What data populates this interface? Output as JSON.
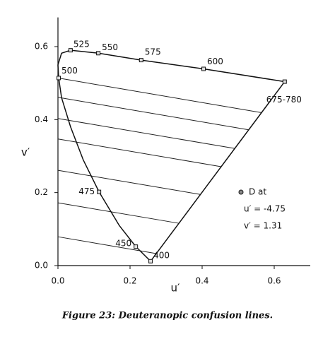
{
  "chart_data": {
    "type": "chromaticity",
    "xlabel": "u′",
    "ylabel": "v′",
    "caption": "Figure 23:  Deuteranopic confusion lines.",
    "xlim": [
      0,
      0.7
    ],
    "ylim": [
      0,
      0.68
    ],
    "xticks": [
      {
        "value": 0,
        "label": "0.0"
      },
      0.2,
      0.4,
      0.6
    ],
    "yticks": [
      {
        "value": 0,
        "label": "0.0"
      },
      0.2,
      0.4,
      0.6
    ],
    "locus": {
      "x": [
        0.257,
        0.216,
        0.17,
        0.114,
        0.07,
        0.035,
        0.01,
        0.002,
        0.0,
        0.01,
        0.035,
        0.112,
        0.231,
        0.404,
        0.629
      ],
      "y": [
        0.012,
        0.052,
        0.11,
        0.202,
        0.29,
        0.38,
        0.46,
        0.514,
        0.55,
        0.582,
        0.59,
        0.582,
        0.563,
        0.539,
        0.504
      ],
      "labels": [
        "400",
        "450",
        null,
        "475",
        null,
        null,
        null,
        "500",
        null,
        null,
        "525",
        "550",
        "575",
        "600",
        "675-780"
      ]
    },
    "confusion_lines": [
      {
        "x": [
          0,
          0.565
        ],
        "y": [
          0.514,
          0.419
        ]
      },
      {
        "x": [
          0,
          0.529
        ],
        "y": [
          0.461,
          0.372
        ]
      },
      {
        "x": [
          0,
          0.49
        ],
        "y": [
          0.403,
          0.321
        ]
      },
      {
        "x": [
          0,
          0.453
        ],
        "y": [
          0.347,
          0.271
        ]
      },
      {
        "x": [
          0,
          0.395
        ],
        "y": [
          0.261,
          0.195
        ]
      },
      {
        "x": [
          0,
          0.335
        ],
        "y": [
          0.172,
          0.116
        ]
      },
      {
        "x": [
          0,
          0.273
        ],
        "y": [
          0.079,
          0.033
        ]
      }
    ],
    "annotation": {
      "lines": [
        "D at",
        "u′ = -4.75",
        "v′ = 1.31"
      ]
    }
  }
}
